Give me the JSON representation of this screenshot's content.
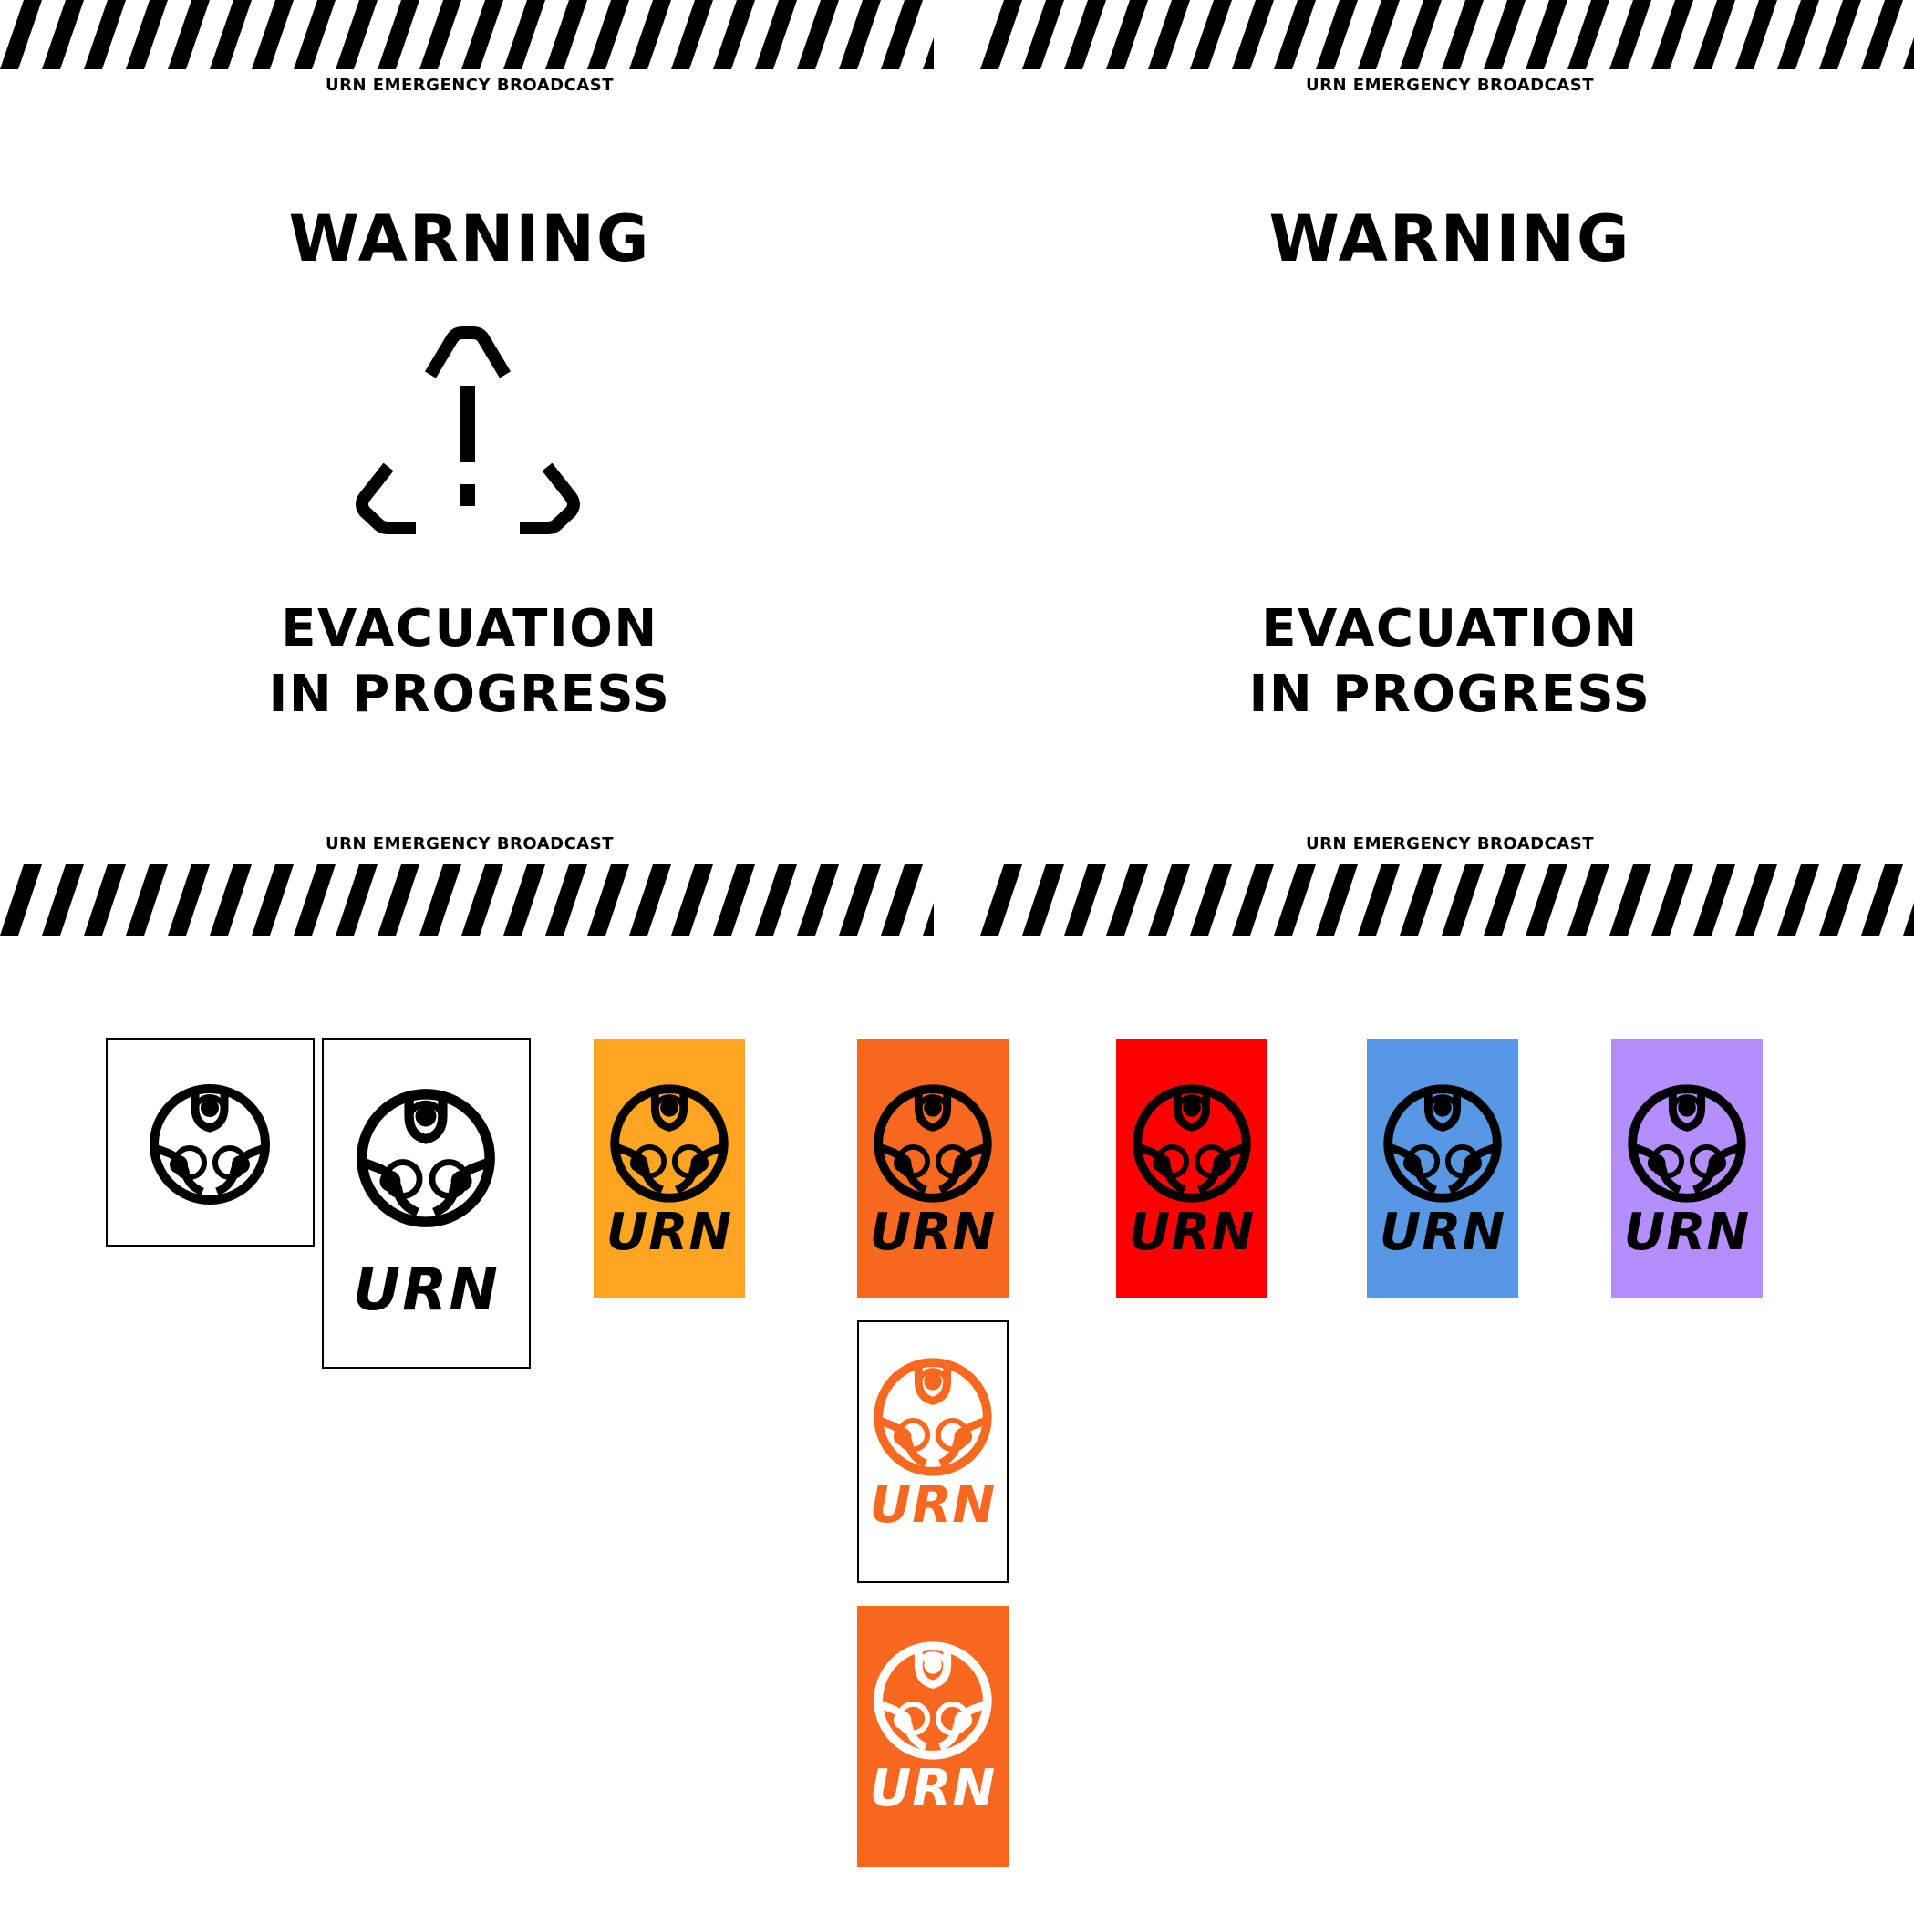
{
  "panels": [
    {
      "broadcast_top": "URN EMERGENCY BROADCAST",
      "warning": "WARNING",
      "message_line1": "EVACUATION",
      "message_line2": "IN PROGRESS",
      "broadcast_bottom": "URN EMERGENCY BROADCAST",
      "icon": "warning-triangle-icon"
    },
    {
      "broadcast_top": "URN EMERGENCY BROADCAST",
      "warning": "WARNING",
      "message_line1": "EVACUATION",
      "message_line2": "IN PROGRESS",
      "broadcast_bottom": "URN EMERGENCY BROADCAST"
    }
  ],
  "logo": {
    "wordmark": "URN",
    "icon": "urn-triskele-logo-icon"
  },
  "colors": {
    "stripe": "#000000",
    "yellow_orange": "#FFA521",
    "orange": "#F9681F",
    "red": "#FF0000",
    "blue": "#5797E3",
    "purple": "#B48EFF"
  }
}
